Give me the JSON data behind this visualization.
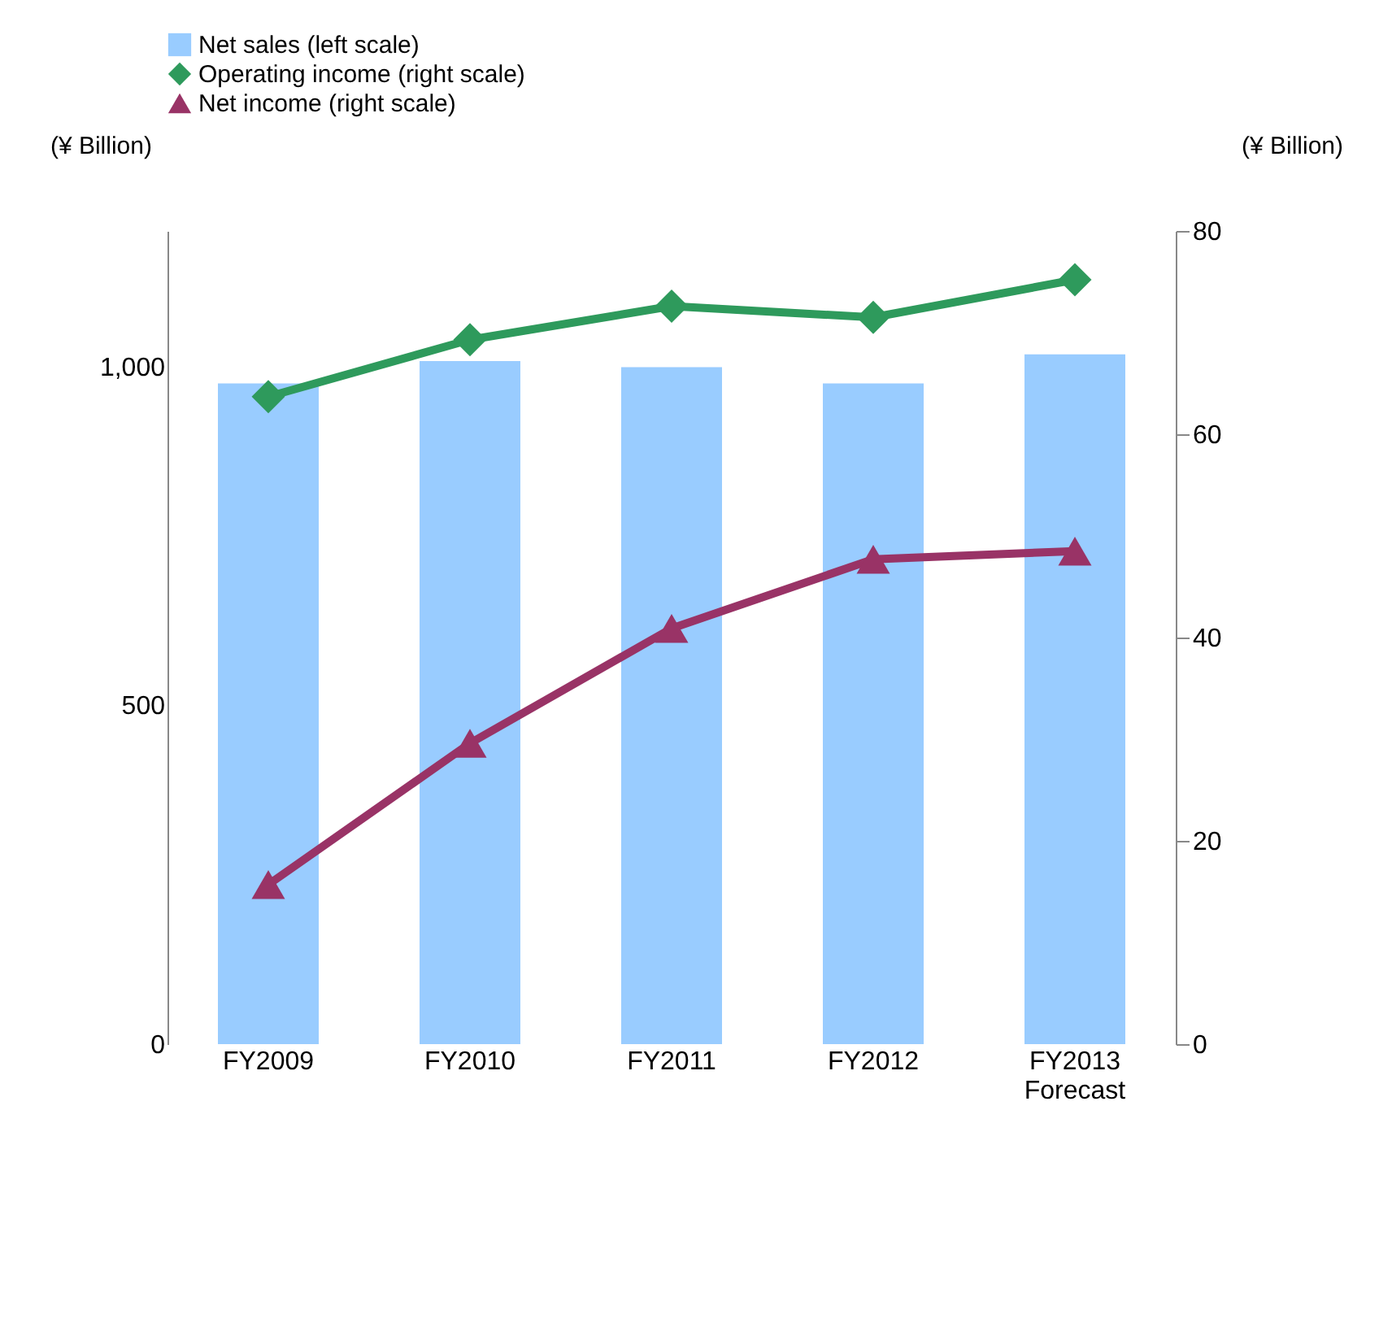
{
  "chart_data": {
    "type": "bar",
    "categories": [
      "FY2009",
      "FY2010",
      "FY2011",
      "FY2012",
      "FY2013 Forecast"
    ],
    "ylabel": "(¥ Billion)",
    "y2label": "(¥ Billion)",
    "ylim": [
      0,
      1200
    ],
    "yticks": [
      0,
      {
        "value": 500,
        "label": "500"
      },
      {
        "value": 1000,
        "label": "1,000"
      }
    ],
    "y2lim": [
      0,
      80
    ],
    "y2ticks": [
      0,
      20,
      40,
      60,
      80
    ],
    "legend": "top",
    "grid": false,
    "series": [
      {
        "name": "Net sales (left scale)",
        "color": "#99ccff",
        "values": [
          975,
          1008,
          999,
          975,
          1018
        ]
      },
      {
        "name": "Operating income (right scale)",
        "type": "line",
        "axis": "y2",
        "marker": "diamond",
        "color": "#2e9a5c",
        "values": [
          63.7,
          69.3,
          72.6,
          71.5,
          75.2
        ]
      },
      {
        "name": "Net income (right scale)",
        "type": "line",
        "axis": "y2",
        "marker": "triangle",
        "color": "#993366",
        "values": [
          15.7,
          29.6,
          40.9,
          47.7,
          48.5
        ]
      }
    ]
  }
}
